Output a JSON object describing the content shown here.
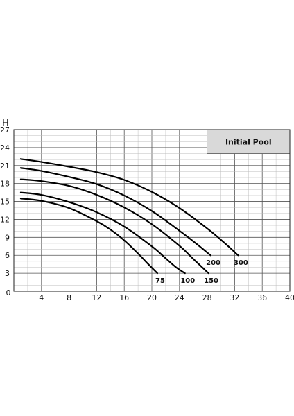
{
  "chart_data": {
    "type": "line",
    "title": "",
    "xlabel": "",
    "ylabel": "H",
    "xlim": [
      0,
      40
    ],
    "ylim": [
      0,
      27
    ],
    "xticks": [
      0,
      4,
      8,
      12,
      16,
      20,
      24,
      28,
      32,
      36,
      40
    ],
    "yticks": [
      3,
      6,
      9,
      12,
      15,
      18,
      21,
      24,
      27
    ],
    "grid": true,
    "legend_box": {
      "text": "Initial Pool",
      "fill": "#d9d9d9",
      "position": "top-right"
    },
    "curve_color": "#000000",
    "series": [
      {
        "name": "75",
        "label": "75",
        "x": [
          1,
          4,
          8,
          12,
          14,
          16,
          18,
          19.5,
          20.8
        ],
        "y": [
          15.5,
          15.1,
          13.9,
          11.7,
          10.3,
          8.5,
          6.3,
          4.5,
          3.0
        ]
      },
      {
        "name": "100",
        "label": "100",
        "x": [
          1,
          4,
          8,
          12,
          16,
          20,
          22,
          23.5,
          24.8
        ],
        "y": [
          16.5,
          16.1,
          14.9,
          13.2,
          10.8,
          7.5,
          5.5,
          4.0,
          3.0
        ]
      },
      {
        "name": "150",
        "label": "150",
        "x": [
          1,
          4,
          8,
          12,
          16,
          20,
          24,
          26,
          28.2
        ],
        "y": [
          18.7,
          18.4,
          17.6,
          16.1,
          14.0,
          11.2,
          7.6,
          5.4,
          3.0
        ]
      },
      {
        "name": "200",
        "label": "200",
        "x": [
          1,
          4,
          8,
          12,
          16,
          20,
          24,
          26.5,
          28.5
        ],
        "y": [
          20.6,
          20.1,
          19.1,
          17.9,
          16.0,
          13.4,
          10.1,
          7.9,
          6.0
        ]
      },
      {
        "name": "300",
        "label": "300",
        "x": [
          1,
          4,
          8,
          12,
          16,
          20,
          24,
          28,
          30.5,
          32.5
        ],
        "y": [
          22.1,
          21.6,
          20.8,
          19.9,
          18.6,
          16.6,
          13.9,
          10.5,
          8.1,
          6.0
        ]
      }
    ]
  }
}
